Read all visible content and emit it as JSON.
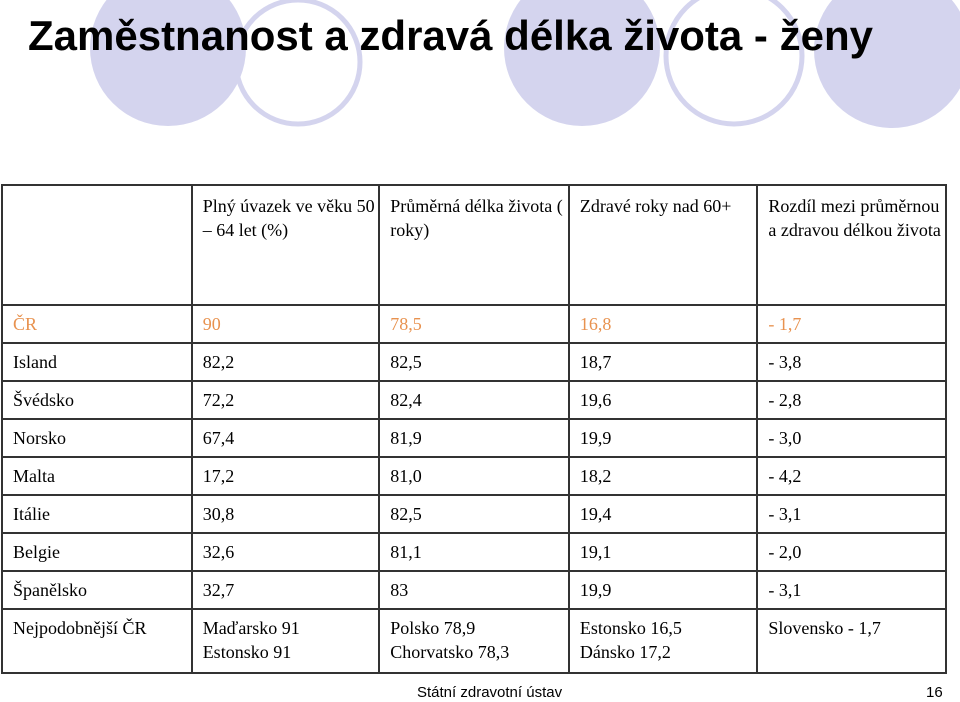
{
  "slide": {
    "title": "Zaměstnanost  a zdravá  délka života - ženy",
    "footer_source": "Státní zdravotní ústav",
    "page_number": "16"
  },
  "colors": {
    "decor_circle": "#d4d4ee",
    "highlight_row": "#e8924f",
    "border": "#333333"
  },
  "table": {
    "headers": [
      "",
      "Plný úvazek  ve věku 50 – 64 let (%)",
      "Průměrná  délka života ( roky)",
      "Zdravé  roky nad 60+",
      "Rozdíl mezi průměrnou a zdravou  délkou života"
    ],
    "rows": [
      [
        "ČR",
        "90",
        "78,5",
        "16,8",
        "- 1,7"
      ],
      [
        "Island",
        "82,2",
        "82,5",
        "18,7",
        "- 3,8"
      ],
      [
        "Švédsko",
        "72,2",
        "82,4",
        "19,6",
        "- 2,8"
      ],
      [
        "Norsko",
        "67,4",
        "81,9",
        "19,9",
        "- 3,0"
      ],
      [
        "Malta",
        "17,2",
        "81,0",
        "18,2",
        "- 4,2"
      ],
      [
        "Itálie",
        "30,8",
        "82,5",
        "19,4",
        "- 3,1"
      ],
      [
        "Belgie",
        "32,6",
        "81,1",
        "19,1",
        "- 2,0"
      ],
      [
        "Španělsko",
        "32,7",
        "83",
        "19,9",
        "- 3,1"
      ]
    ],
    "last_row": {
      "label": "Nejpodobnější ČR",
      "col1": [
        "Maďarsko  91",
        "Estonsko  91"
      ],
      "col2": [
        "Polsko 78,9",
        "Chorvatsko 78,3"
      ],
      "col3": [
        "Estonsko  16,5",
        "Dánsko  17,2"
      ],
      "col4": [
        "Slovensko  - 1,7"
      ]
    }
  }
}
